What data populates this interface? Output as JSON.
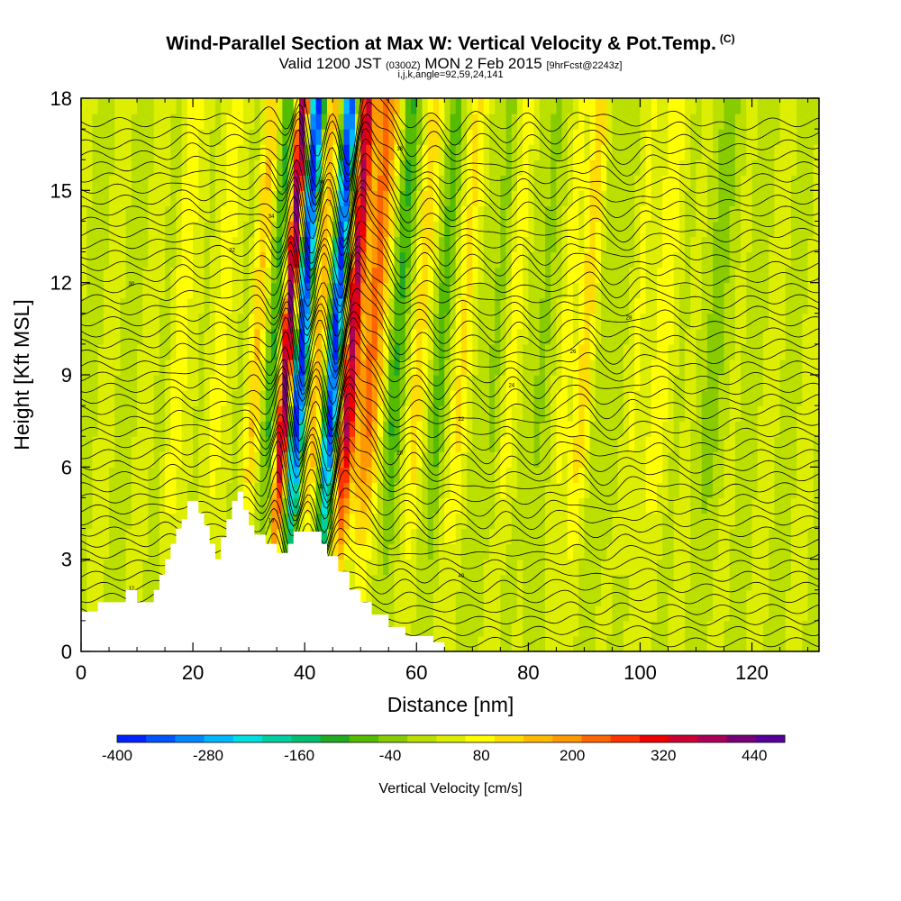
{
  "titles": {
    "main": "Wind-Parallel Section at Max W: Vertical Velocity & Pot.Temp.",
    "copyright": "(C)",
    "valid_prefix": "Valid 1200 JST",
    "valid_utc": "(0300Z)",
    "valid_date": "MON 2 Feb 2015",
    "forecast": "[9hrFcst@2243z]",
    "indices": "i,j,k,angle=92,59,24,141"
  },
  "chart_data": {
    "type": "heatmap",
    "xlabel": "Distance [nm]",
    "ylabel": "Height [Kft MSL]",
    "xlim": [
      0,
      132
    ],
    "ylim": [
      0,
      18
    ],
    "x_ticks": [
      0,
      20,
      40,
      60,
      80,
      100,
      120
    ],
    "y_ticks": [
      0,
      3,
      6,
      9,
      12,
      15,
      18
    ],
    "grid": false,
    "colorbar": {
      "label": "Vertical Velocity [cm/s]",
      "min": -400,
      "max": 480,
      "tick_labels": [
        -400,
        -280,
        -160,
        -40,
        80,
        200,
        320,
        440
      ],
      "colors": [
        "#0022ff",
        "#0055ff",
        "#0088ff",
        "#00b8ff",
        "#00e0e0",
        "#00d0a0",
        "#00c070",
        "#22aa22",
        "#55bb00",
        "#88cc00",
        "#bbe000",
        "#ddee00",
        "#ffff00",
        "#ffdd00",
        "#ffbb00",
        "#ff9900",
        "#ff6600",
        "#ff3300",
        "#ee0000",
        "#cc0033",
        "#aa0055",
        "#770077",
        "#550099"
      ],
      "position": "bottom"
    },
    "background_velocity": 20,
    "w_bands": [
      {
        "x": 14,
        "w": 1.5,
        "amp": 70
      },
      {
        "x": 21,
        "w": 2.0,
        "amp": 50
      },
      {
        "x": 28,
        "w": 1.5,
        "amp": 120
      },
      {
        "x": 31,
        "w": 1.6,
        "amp": -130
      },
      {
        "x": 33.5,
        "w": 1.2,
        "amp": 430
      },
      {
        "x": 36,
        "w": 1.3,
        "amp": -420
      },
      {
        "x": 39,
        "w": 1.2,
        "amp": 160
      },
      {
        "x": 42,
        "w": 1.2,
        "amp": -400
      },
      {
        "x": 45,
        "w": 1.3,
        "amp": 330
      },
      {
        "x": 48.5,
        "w": 2.2,
        "amp": 210
      },
      {
        "x": 53,
        "w": 1.6,
        "amp": -110
      },
      {
        "x": 57,
        "w": 1.5,
        "amp": 90
      },
      {
        "x": 61,
        "w": 1.4,
        "amp": -80
      },
      {
        "x": 65,
        "w": 1.8,
        "amp": 70
      },
      {
        "x": 71,
        "w": 1.5,
        "amp": -60
      },
      {
        "x": 74,
        "w": 1.5,
        "amp": 70
      },
      {
        "x": 79,
        "w": 1.6,
        "amp": -60
      },
      {
        "x": 83,
        "w": 1.5,
        "amp": 60
      },
      {
        "x": 87,
        "w": 1.5,
        "amp": 100
      },
      {
        "x": 92,
        "w": 1.8,
        "amp": -50
      },
      {
        "x": 96,
        "w": 1.5,
        "amp": 60
      },
      {
        "x": 101,
        "w": 2.0,
        "amp": 60
      },
      {
        "x": 110,
        "w": 3.0,
        "amp": -40
      }
    ],
    "theta_contours": {
      "levels_count": 48,
      "bottom_height": 0.3,
      "spacing": 0.36,
      "wave_amplitude_kft": 1.6,
      "labels": [
        "12",
        "14",
        "16",
        "18",
        "20",
        "22",
        "24",
        "26",
        "28",
        "30",
        "32",
        "34",
        "36",
        "38",
        "40"
      ]
    },
    "terrain": [
      [
        0,
        1.3
      ],
      [
        3,
        1.3
      ],
      [
        3,
        1.6
      ],
      [
        8,
        1.6
      ],
      [
        8,
        2.0
      ],
      [
        10,
        2.0
      ],
      [
        10,
        1.6
      ],
      [
        13,
        1.6
      ],
      [
        13,
        2.0
      ],
      [
        14,
        2.0
      ],
      [
        14,
        2.5
      ],
      [
        15,
        2.5
      ],
      [
        15,
        3.0
      ],
      [
        16,
        3.0
      ],
      [
        16,
        3.5
      ],
      [
        17,
        3.5
      ],
      [
        17,
        4.0
      ],
      [
        18,
        4.0
      ],
      [
        18,
        4.3
      ],
      [
        19,
        4.3
      ],
      [
        19,
        4.9
      ],
      [
        21,
        4.9
      ],
      [
        21,
        4.5
      ],
      [
        22,
        4.5
      ],
      [
        22,
        4.1
      ],
      [
        23,
        4.1
      ],
      [
        23,
        3.5
      ],
      [
        24,
        3.5
      ],
      [
        24,
        3.0
      ],
      [
        25,
        3.0
      ],
      [
        25,
        3.7
      ],
      [
        26,
        3.7
      ],
      [
        26,
        4.3
      ],
      [
        27,
        4.3
      ],
      [
        27,
        4.9
      ],
      [
        28,
        4.9
      ],
      [
        28,
        5.2
      ],
      [
        29,
        5.2
      ],
      [
        29,
        4.6
      ],
      [
        30,
        4.6
      ],
      [
        30,
        4.1
      ],
      [
        31,
        4.1
      ],
      [
        31,
        3.8
      ],
      [
        33,
        3.8
      ],
      [
        33,
        3.5
      ],
      [
        35,
        3.5
      ],
      [
        35,
        3.2
      ],
      [
        37,
        3.2
      ],
      [
        37,
        3.5
      ],
      [
        38,
        3.5
      ],
      [
        38,
        3.9
      ],
      [
        43,
        3.9
      ],
      [
        43,
        3.5
      ],
      [
        44,
        3.5
      ],
      [
        44,
        3.1
      ],
      [
        46,
        3.1
      ],
      [
        46,
        2.6
      ],
      [
        48,
        2.6
      ],
      [
        48,
        2.0
      ],
      [
        50,
        2.0
      ],
      [
        50,
        1.6
      ],
      [
        52,
        1.6
      ],
      [
        52,
        1.2
      ],
      [
        55,
        1.2
      ],
      [
        55,
        0.8
      ],
      [
        58,
        0.8
      ],
      [
        58,
        0.5
      ],
      [
        63,
        0.5
      ],
      [
        63,
        0.3
      ],
      [
        65,
        0.3
      ],
      [
        65,
        0
      ],
      [
        132,
        0
      ]
    ]
  }
}
